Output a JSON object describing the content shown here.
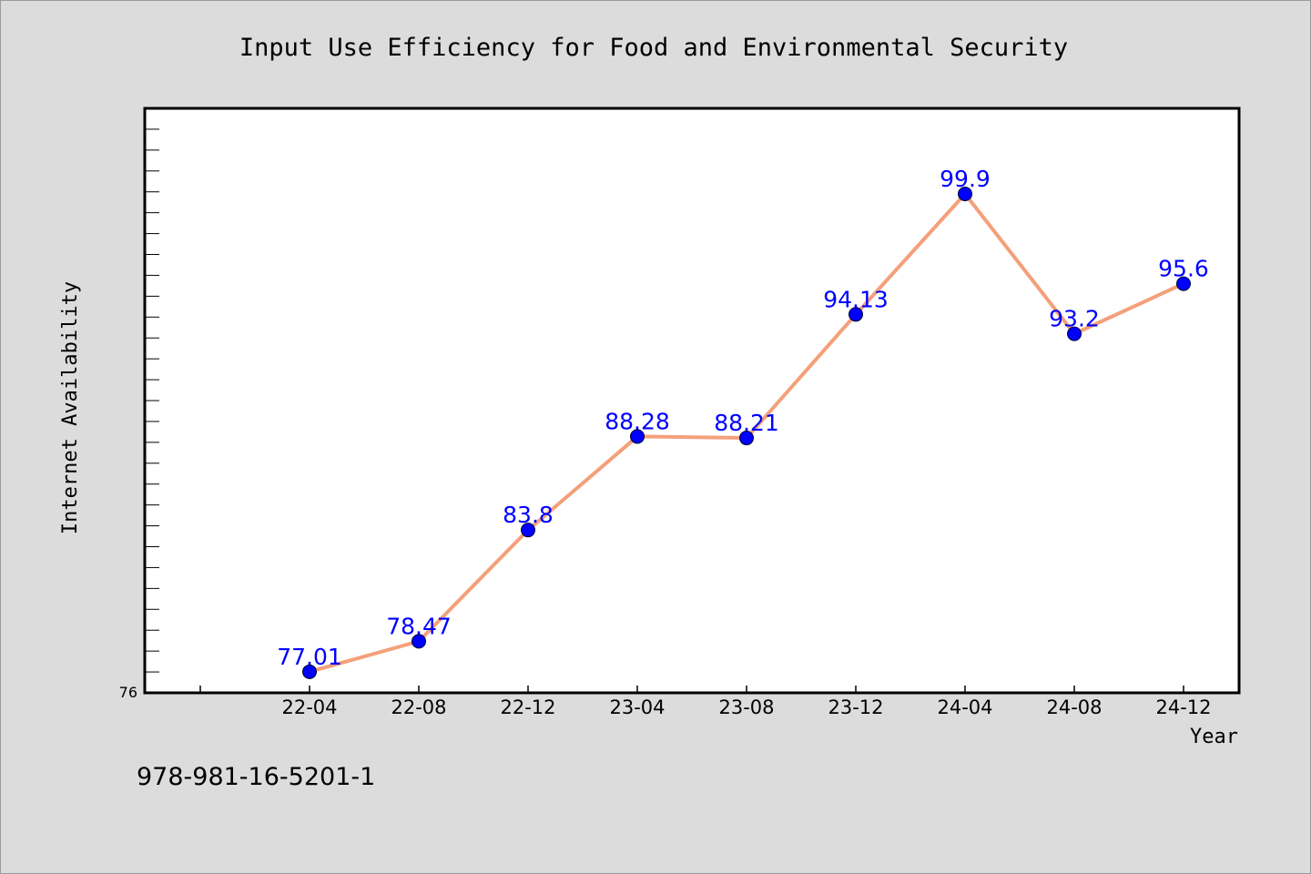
{
  "chart_data": {
    "type": "line",
    "title": "Input Use Efficiency for Food and Environmental Security",
    "xlabel": "Year",
    "ylabel": "Internet Availability",
    "categories": [
      "22-04",
      "22-08",
      "22-12",
      "23-04",
      "23-08",
      "23-12",
      "24-04",
      "24-08",
      "24-12"
    ],
    "series": [
      {
        "values": [
          77.01,
          78.47,
          83.8,
          88.28,
          88.21,
          94.13,
          99.9,
          93.2,
          95.6
        ],
        "labels": [
          "77.01",
          "78.47",
          "83.8",
          "88.28",
          "88.21",
          "94.13",
          "99.9",
          "93.2",
          "95.6"
        ]
      }
    ],
    "ylim": [
      76,
      104
    ],
    "y_tick_labels": [
      "76"
    ],
    "grid": false,
    "legend": "none",
    "colors": {
      "line": "#f4a07a",
      "marker": "#0000ff",
      "data_label": "#0000ff",
      "plot_background": "#ffffff",
      "page_background": "#dcdcdc"
    }
  },
  "footnote": "978-981-16-5201-1"
}
